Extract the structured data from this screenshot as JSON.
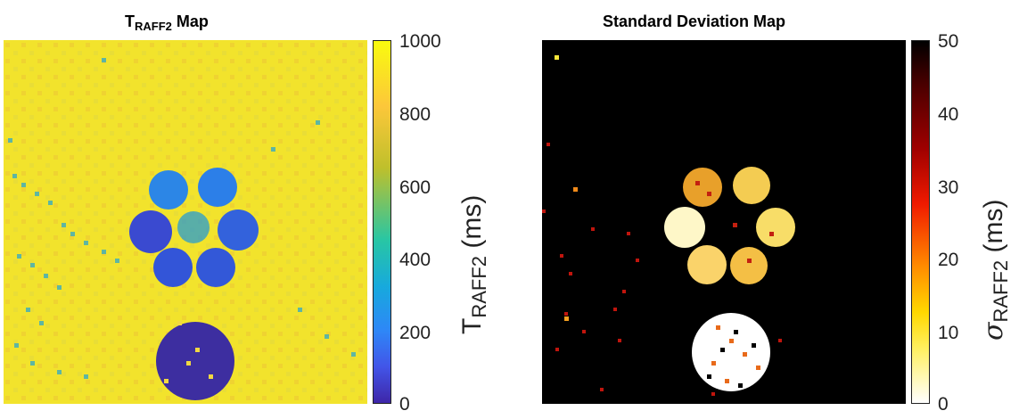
{
  "left_panel": {
    "title_main": "T",
    "title_sub": "RAFF2",
    "title_rest": " Map",
    "colorbar": {
      "ticks": [
        "1000",
        "800",
        "600",
        "400",
        "200",
        "0"
      ],
      "label_main": "T",
      "label_sub": "RAFF2",
      "label_unit": " (ms)",
      "colormap": "parula",
      "range": [
        0,
        1000
      ]
    }
  },
  "right_panel": {
    "title": "Standard Deviation Map",
    "colorbar": {
      "ticks": [
        "50",
        "40",
        "30",
        "20",
        "10",
        "0"
      ],
      "label_symbol": "σ",
      "label_sub": "RAFF2",
      "label_unit": " (ms)",
      "colormap": "hot-reversed",
      "range": [
        0,
        50
      ]
    }
  }
}
